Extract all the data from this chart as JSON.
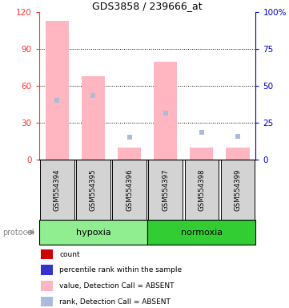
{
  "title": "GDS3858 / 239666_at",
  "samples": [
    "GSM554394",
    "GSM554395",
    "GSM554396",
    "GSM554397",
    "GSM554398",
    "GSM554399"
  ],
  "hypoxia_color_light": "#90EE90",
  "normoxia_color_dark": "#32CD32",
  "bar_values": [
    113,
    68,
    10,
    80,
    10,
    10
  ],
  "rank_values": [
    48,
    52,
    18,
    38,
    22,
    19
  ],
  "bar_color": "#FFB6C1",
  "rank_color": "#AABBDD",
  "bg_color": "#D3D3D3",
  "left_tick_color": "#FF3333",
  "right_tick_color": "#0000CC",
  "left_yticks": [
    0,
    30,
    60,
    90,
    120
  ],
  "right_yticks": [
    0,
    25,
    50,
    75,
    100
  ],
  "right_yticklabels": [
    "0",
    "25",
    "50",
    "75",
    "100%"
  ],
  "legend_items": [
    {
      "color": "#CC0000",
      "label": "count"
    },
    {
      "color": "#3333CC",
      "label": "percentile rank within the sample"
    },
    {
      "color": "#FFB6C1",
      "label": "value, Detection Call = ABSENT"
    },
    {
      "color": "#AABBDD",
      "label": "rank, Detection Call = ABSENT"
    }
  ]
}
